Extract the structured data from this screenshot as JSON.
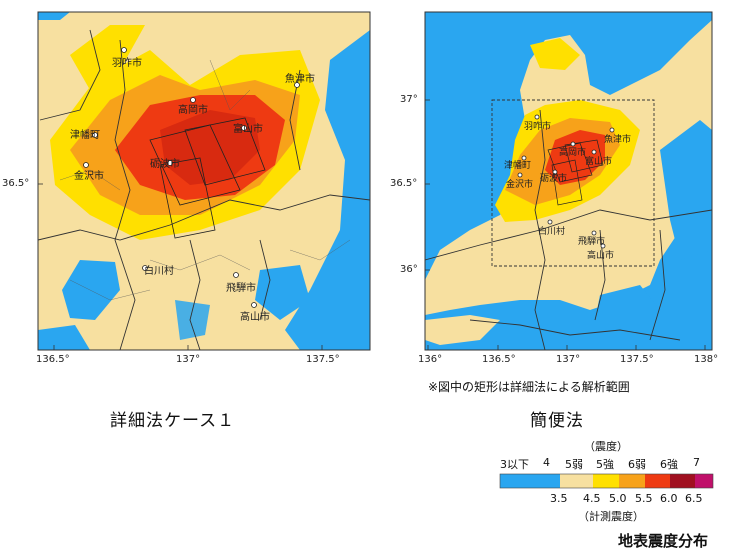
{
  "left_map": {
    "caption": "詳細法ケース１",
    "x_ticks": [
      "136.5°",
      "137°",
      "137.5°"
    ],
    "y_ticks": [
      "36.5°"
    ],
    "cities": [
      {
        "name": "羽咋市"
      },
      {
        "name": "魚津市"
      },
      {
        "name": "高岡市"
      },
      {
        "name": "富山市"
      },
      {
        "name": "津幡町"
      },
      {
        "name": "金沢市"
      },
      {
        "name": "砺波市"
      },
      {
        "name": "白川村"
      },
      {
        "name": "飛騨市"
      },
      {
        "name": "高山市"
      }
    ]
  },
  "right_map": {
    "caption": "簡便法",
    "note": "※図中の矩形は詳細法による解析範囲",
    "x_ticks": [
      "136°",
      "136.5°",
      "137°",
      "137.5°",
      "138°"
    ],
    "y_ticks": [
      "37°",
      "36.5°",
      "36°"
    ],
    "cities": [
      {
        "name": "羽咋市"
      },
      {
        "name": "魚津市"
      },
      {
        "name": "高岡市"
      },
      {
        "name": "富山市"
      },
      {
        "name": "津幡町"
      },
      {
        "name": "金沢市"
      },
      {
        "name": "砺波市"
      },
      {
        "name": "白川村"
      },
      {
        "name": "飛騨市"
      },
      {
        "name": "高山市"
      }
    ]
  },
  "legend": {
    "title": "（震度）",
    "intensity_labels": [
      "3以下",
      "4",
      "5弱",
      "5強",
      "6弱",
      "6強",
      "7"
    ],
    "colors": [
      "#2aa6f0",
      "#f7e0a0",
      "#ffe000",
      "#f7a21a",
      "#ee3a12",
      "#a01020",
      "#c0106a"
    ],
    "measured_labels": [
      "3.5",
      "4.5",
      "5.0",
      "5.5",
      "6.0",
      "6.5"
    ],
    "measured_caption": "（計測震度）"
  },
  "footer_title": "地表震度分布"
}
